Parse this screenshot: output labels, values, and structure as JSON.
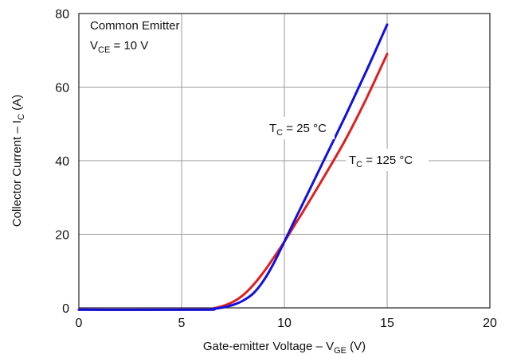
{
  "chart_data": {
    "type": "line",
    "xlabel": {
      "main": "Gate-emitter Voltage – V",
      "sub": "GE",
      "unit": " (V)"
    },
    "ylabel": {
      "main": "Collector Current – I",
      "sub": "C",
      "unit": " (A)"
    },
    "xlim": [
      0,
      20
    ],
    "ylim": [
      0,
      80
    ],
    "x_ticks": [
      0,
      5,
      10,
      15,
      20
    ],
    "y_ticks": [
      0,
      20,
      40,
      60,
      80
    ],
    "x_tick_labels": [
      "0",
      "5",
      "10",
      "15",
      "20"
    ],
    "y_tick_labels": [
      "0",
      "20",
      "40",
      "60",
      "80"
    ],
    "grid": true,
    "conditions": {
      "line1": "Common Emitter",
      "line2_main": "V",
      "line2_sub": "CE",
      "line2_rest": " = 10 V"
    },
    "series": [
      {
        "name": "T_C = 25 °C",
        "label_main": "T",
        "label_sub": "C",
        "label_rest": " = 25 °C",
        "color": "#1010e0",
        "x": [
          0,
          6,
          6.5,
          7,
          7.5,
          8,
          8.5,
          9,
          9.5,
          10,
          10.5,
          11,
          12,
          13,
          14,
          15
        ],
        "y": [
          -0.5,
          -0.5,
          -0.3,
          0.1,
          0.8,
          2.0,
          4.0,
          7.5,
          12.3,
          18,
          23.8,
          29.5,
          41,
          52.5,
          64.5,
          77
        ]
      },
      {
        "name": "T_C = 125 °C",
        "label_main": "T",
        "label_sub": "C",
        "label_rest": " = 125 °C",
        "color": "#dd2020",
        "x": [
          0,
          6,
          6.5,
          7,
          7.5,
          8,
          8.5,
          9,
          9.5,
          10,
          10.5,
          11,
          12,
          13,
          14,
          15
        ],
        "y": [
          -0.5,
          -0.5,
          -0.2,
          0.5,
          1.6,
          3.5,
          6.3,
          9.8,
          13.8,
          18,
          22.5,
          27,
          36.3,
          46,
          57,
          69
        ]
      }
    ]
  }
}
